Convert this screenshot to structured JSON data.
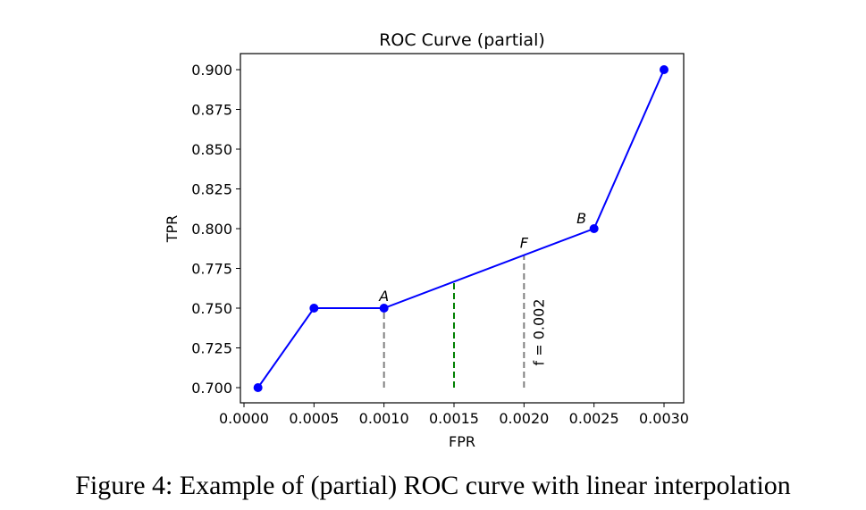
{
  "chart_data": {
    "type": "line",
    "title": "ROC Curve (partial)",
    "xlabel": "FPR",
    "ylabel": "TPR",
    "xlim": [
      -5e-05,
      0.00315
    ],
    "ylim": [
      0.691,
      0.91
    ],
    "xticks": [
      0.0,
      0.0005,
      0.001,
      0.0015,
      0.002,
      0.0025,
      0.003
    ],
    "xtick_labels": [
      "0.0000",
      "0.0005",
      "0.0010",
      "0.0015",
      "0.0020",
      "0.0025",
      "0.0030"
    ],
    "yticks": [
      0.7,
      0.725,
      0.75,
      0.775,
      0.8,
      0.825,
      0.85,
      0.875,
      0.9
    ],
    "ytick_labels": [
      "0.700",
      "0.725",
      "0.750",
      "0.775",
      "0.800",
      "0.825",
      "0.850",
      "0.875",
      "0.900"
    ],
    "series": [
      {
        "name": "ROC",
        "color": "#0000ff",
        "x": [
          0.0001,
          0.0005,
          0.001,
          0.0025,
          0.003
        ],
        "y": [
          0.7,
          0.75,
          0.75,
          0.8,
          0.9
        ]
      }
    ],
    "vlines": [
      {
        "x": 0.001,
        "y0": 0.7,
        "y1": 0.75,
        "color": "#808080"
      },
      {
        "x": 0.0015,
        "y0": 0.7,
        "y1": 0.76667,
        "color": "#008000"
      },
      {
        "x": 0.002,
        "y0": 0.7,
        "y1": 0.78333,
        "color": "#808080"
      }
    ],
    "annotations": [
      {
        "text": "A",
        "x": 0.001,
        "y": 0.75
      },
      {
        "text": "F",
        "x": 0.002,
        "y": 0.78333
      },
      {
        "text": "B",
        "x": 0.0025,
        "y": 0.8
      }
    ],
    "vline_label": "f = 0.002",
    "grid": false
  },
  "caption": "Figure 4: Example of (partial) ROC curve with linear interpolation"
}
